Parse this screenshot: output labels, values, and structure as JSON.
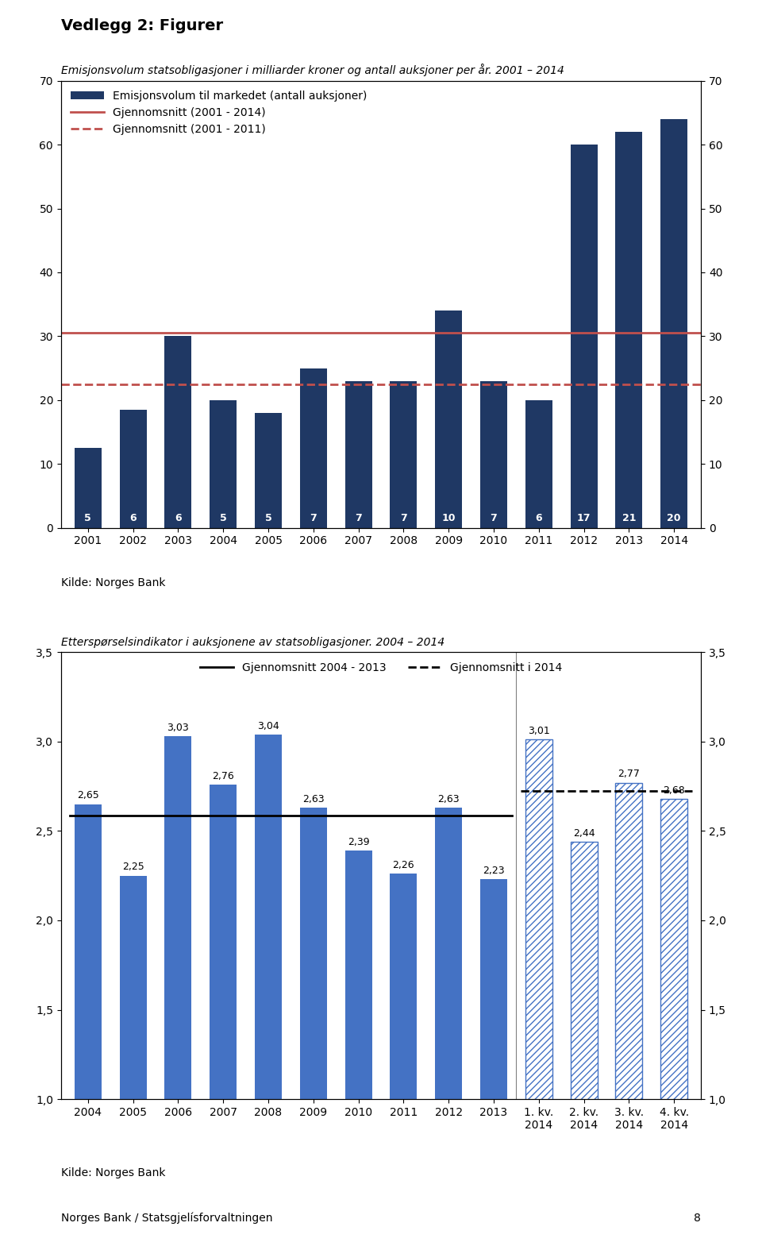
{
  "title": "Vedlegg 2: Figurer",
  "annotations": [
    "Norges Bank / Statsgjelísforvaltningen",
    "8"
  ],
  "chart_data": [
    {
      "type": "bar",
      "subtitle": "Emisjonsvolum statsobligasjoner i milliarder kroner og antall auksjoner per år. 2001 – 2014",
      "categories": [
        "2001",
        "2002",
        "2003",
        "2004",
        "2005",
        "2006",
        "2007",
        "2008",
        "2009",
        "2010",
        "2011",
        "2012",
        "2013",
        "2014"
      ],
      "series": [
        {
          "name": "Emisjonsvolum til markedet (antall auksjoner)",
          "color": "#1F3864",
          "values": [
            12.5,
            18.5,
            30,
            20,
            18,
            25,
            23,
            23,
            34,
            23,
            20,
            60,
            62,
            64
          ],
          "auctions": [
            5,
            6,
            6,
            5,
            5,
            7,
            7,
            7,
            10,
            7,
            6,
            17,
            21,
            20
          ]
        }
      ],
      "reference_lines": [
        {
          "name": "Gjennomsnitt (2001 - 2014)",
          "value": 30.5,
          "color": "#C0504D",
          "line_style": "solid"
        },
        {
          "name": "Gjennomsnitt (2001 - 2011)",
          "value": 22.5,
          "color": "#C0504D",
          "line_style": "dashed"
        }
      ],
      "ylim": [
        0,
        70
      ],
      "yticks": [
        0,
        10,
        20,
        30,
        40,
        50,
        60,
        70
      ],
      "y2lim": [
        0,
        70
      ],
      "y2ticks": [
        0,
        10,
        20,
        30,
        40,
        50,
        60,
        70
      ],
      "legend": "upper left",
      "annotations": [
        "Kilde: Norges Bank"
      ]
    },
    {
      "type": "bar",
      "subtitle": "Etterspørselsindikator i auksjonene av statsobligasjoner. 2004 – 2014",
      "categories": [
        "2004",
        "2005",
        "2006",
        "2007",
        "2008",
        "2009",
        "2010",
        "2011",
        "2012",
        "2013",
        "1. kv.\n2014",
        "2. kv.\n2014",
        "3. kv.\n2014",
        "4. kv.\n2014"
      ],
      "series": [
        {
          "color": "#4472C4",
          "values": [
            2.65,
            2.25,
            3.03,
            2.76,
            3.04,
            2.63,
            2.39,
            2.26,
            2.63,
            2.23,
            null,
            null,
            null,
            null
          ],
          "value_labels": [
            "2,65",
            "2,25",
            "3,03",
            "2,76",
            "3,04",
            "2,63",
            "2,39",
            "2,26",
            "2,63",
            "2,23",
            null,
            null,
            null,
            null
          ]
        },
        {
          "color": "#4472C4",
          "values": [
            null,
            null,
            null,
            null,
            null,
            null,
            null,
            null,
            null,
            null,
            3.01,
            2.44,
            2.77,
            2.68
          ],
          "value_labels": [
            null,
            null,
            null,
            null,
            null,
            null,
            null,
            null,
            null,
            null,
            "3,01",
            "2,44",
            "2,77",
            "2,68"
          ]
        }
      ],
      "data_labels": true,
      "reference_lines": [
        {
          "name": "Gjennomsnitt 2004 - 2013",
          "value": 2.586,
          "color": "#000000",
          "line_style": "solid",
          "span": [
            "2004",
            "2013"
          ]
        },
        {
          "name": "Gjennomsnitt i 2014",
          "value": 2.725,
          "color": "#000000",
          "line_style": "dashed",
          "span": [
            "1. kv.\n2014",
            "4. kv.\n2014"
          ]
        }
      ],
      "ylim": [
        1.0,
        3.5
      ],
      "yticks": [
        {
          "value": 1.0,
          "label": "1,0"
        },
        {
          "value": 1.5,
          "label": "1,5"
        },
        {
          "value": 2.0,
          "label": "2,0"
        },
        {
          "value": 2.5,
          "label": "2,5"
        },
        {
          "value": 3.0,
          "label": "3,0"
        },
        {
          "value": 3.5,
          "label": "3,5"
        }
      ],
      "y2lim": [
        1.0,
        3.5
      ],
      "y2ticks": [
        {
          "value": 1.0,
          "label": "1,0"
        },
        {
          "value": 1.5,
          "label": "1,5"
        },
        {
          "value": 2.0,
          "label": "2,0"
        },
        {
          "value": 2.5,
          "label": "2,5"
        },
        {
          "value": 3.0,
          "label": "3,0"
        },
        {
          "value": 3.5,
          "label": "3,5"
        }
      ],
      "legend": "upper center",
      "annotations": [
        "Kilde: Norges Bank"
      ]
    }
  ]
}
